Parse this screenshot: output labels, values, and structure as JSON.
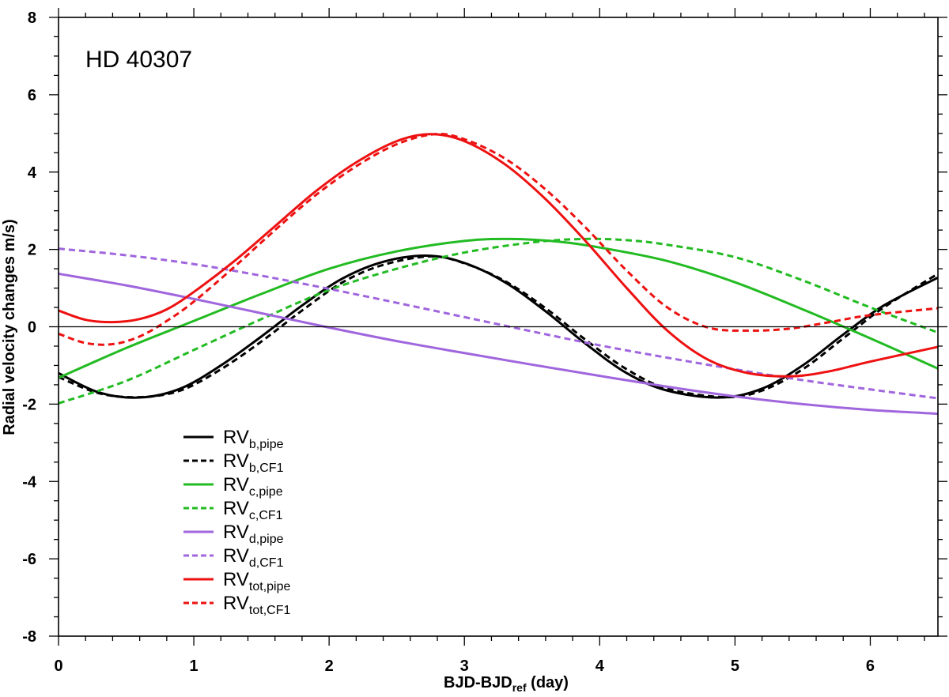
{
  "chart_data": {
    "type": "line",
    "annotation": "HD 40307",
    "xlabel": {
      "main": "BJD-BJD",
      "sub": "ref",
      "tail": " (day)"
    },
    "ylabel": "Radial velocity changes m/s)",
    "xlim": [
      0,
      6.5
    ],
    "ylim": [
      -8,
      8
    ],
    "xticks": [
      0,
      1,
      2,
      3,
      4,
      5,
      6
    ],
    "yticks": [
      -8,
      -6,
      -4,
      -2,
      0,
      2,
      4,
      6,
      8
    ],
    "xtick_labels": [
      "0",
      "1",
      "2",
      "3",
      "4",
      "5",
      "6"
    ],
    "ytick_labels": [
      "-8",
      "-6",
      "-4",
      "-2",
      "0",
      "2",
      "4",
      "6",
      "8"
    ],
    "zero_line": true,
    "grid": false,
    "legend_position": "lower-left",
    "series": [
      {
        "name": "RV",
        "sub": "b,pipe",
        "color": "#000000",
        "dash": "solid",
        "x": [
          0,
          0.3,
          0.6,
          0.9,
          1.2,
          1.5,
          1.8,
          2.1,
          2.4,
          2.72,
          3.0,
          3.3,
          3.6,
          3.9,
          4.2,
          4.5,
          4.89,
          5.2,
          5.5,
          5.8,
          6.1,
          6.5
        ],
        "y": [
          -1.2,
          -1.7,
          -1.83,
          -1.6,
          -1.0,
          -0.25,
          0.55,
          1.25,
          1.68,
          1.84,
          1.65,
          1.15,
          0.4,
          -0.45,
          -1.2,
          -1.65,
          -1.83,
          -1.6,
          -1.0,
          -0.2,
          0.55,
          1.27
        ]
      },
      {
        "name": "RV",
        "sub": "b,CF1",
        "color": "#000000",
        "dash": "dashed",
        "x": [
          0,
          0.3,
          0.6,
          0.9,
          1.2,
          1.5,
          1.8,
          2.1,
          2.4,
          2.75,
          3.0,
          3.3,
          3.6,
          3.9,
          4.2,
          4.5,
          4.92,
          5.2,
          5.5,
          5.8,
          6.1,
          6.5
        ],
        "y": [
          -1.3,
          -1.72,
          -1.82,
          -1.65,
          -1.1,
          -0.38,
          0.42,
          1.15,
          1.6,
          1.82,
          1.64,
          1.18,
          0.48,
          -0.35,
          -1.1,
          -1.6,
          -1.82,
          -1.65,
          -1.1,
          -0.3,
          0.5,
          1.37
        ]
      },
      {
        "name": "RV",
        "sub": "c,pipe",
        "color": "#22bb22",
        "dash": "solid",
        "x": [
          0,
          0.5,
          1.0,
          1.5,
          2.0,
          2.5,
          3.0,
          3.34,
          3.7,
          4.0,
          4.5,
          5.0,
          5.5,
          6.0,
          6.5
        ],
        "y": [
          -1.32,
          -0.55,
          0.15,
          0.85,
          1.5,
          1.95,
          2.22,
          2.27,
          2.2,
          2.05,
          1.7,
          1.15,
          0.45,
          -0.3,
          -1.08
        ]
      },
      {
        "name": "RV",
        "sub": "c,CF1",
        "color": "#22bb22",
        "dash": "dashed",
        "x": [
          0,
          0.5,
          1.0,
          1.5,
          2.0,
          2.5,
          3.0,
          3.5,
          3.87,
          4.2,
          4.5,
          5.0,
          5.5,
          6.0,
          6.5
        ],
        "y": [
          -1.98,
          -1.4,
          -0.6,
          0.2,
          0.95,
          1.5,
          1.92,
          2.18,
          2.27,
          2.24,
          2.12,
          1.8,
          1.2,
          0.5,
          -0.15
        ]
      },
      {
        "name": "RV",
        "sub": "d,pipe",
        "color": "#a066dd",
        "dash": "solid",
        "x": [
          0,
          0.5,
          1.0,
          1.5,
          2.0,
          2.5,
          3.0,
          3.5,
          4.0,
          4.5,
          5.0,
          5.5,
          6.0,
          6.5
        ],
        "y": [
          1.37,
          1.07,
          0.72,
          0.35,
          -0.02,
          -0.37,
          -0.68,
          -0.98,
          -1.27,
          -1.55,
          -1.8,
          -2.0,
          -2.15,
          -2.25
        ]
      },
      {
        "name": "RV",
        "sub": "d,CF1",
        "color": "#a066dd",
        "dash": "dashed",
        "x": [
          0,
          0.5,
          1.0,
          1.5,
          2.0,
          2.5,
          3.0,
          3.5,
          4.0,
          4.5,
          5.0,
          5.5,
          6.0,
          6.5
        ],
        "y": [
          2.02,
          1.85,
          1.62,
          1.32,
          0.98,
          0.62,
          0.25,
          -0.12,
          -0.48,
          -0.8,
          -1.1,
          -1.38,
          -1.62,
          -1.85
        ]
      },
      {
        "name": "RV",
        "sub": "tot,pipe",
        "color": "#ee1111",
        "dash": "solid",
        "x": [
          0,
          0.2,
          0.4,
          0.6,
          0.8,
          1.0,
          1.3,
          1.6,
          1.9,
          2.2,
          2.5,
          2.75,
          3.0,
          3.3,
          3.6,
          3.9,
          4.2,
          4.5,
          4.8,
          5.1,
          5.42,
          5.7,
          6.0,
          6.5
        ],
        "y": [
          0.42,
          0.18,
          0.12,
          0.2,
          0.45,
          0.9,
          1.7,
          2.6,
          3.5,
          4.25,
          4.8,
          4.98,
          4.8,
          4.2,
          3.3,
          2.2,
          1.0,
          -0.1,
          -0.85,
          -1.2,
          -1.28,
          -1.15,
          -0.9,
          -0.52
        ]
      },
      {
        "name": "RV",
        "sub": "tot,CF1",
        "color": "#ee1111",
        "dash": "dashed",
        "x": [
          0,
          0.2,
          0.4,
          0.6,
          0.8,
          1.0,
          1.3,
          1.6,
          1.9,
          2.2,
          2.5,
          2.78,
          3.0,
          3.3,
          3.6,
          3.9,
          4.2,
          4.5,
          4.8,
          5.1,
          5.4,
          5.7,
          6.0,
          6.5
        ],
        "y": [
          -0.18,
          -0.42,
          -0.45,
          -0.25,
          0.15,
          0.65,
          1.55,
          2.5,
          3.4,
          4.15,
          4.72,
          4.98,
          4.85,
          4.35,
          3.55,
          2.55,
          1.45,
          0.5,
          -0.02,
          -0.1,
          -0.05,
          0.12,
          0.3,
          0.48
        ]
      }
    ]
  }
}
